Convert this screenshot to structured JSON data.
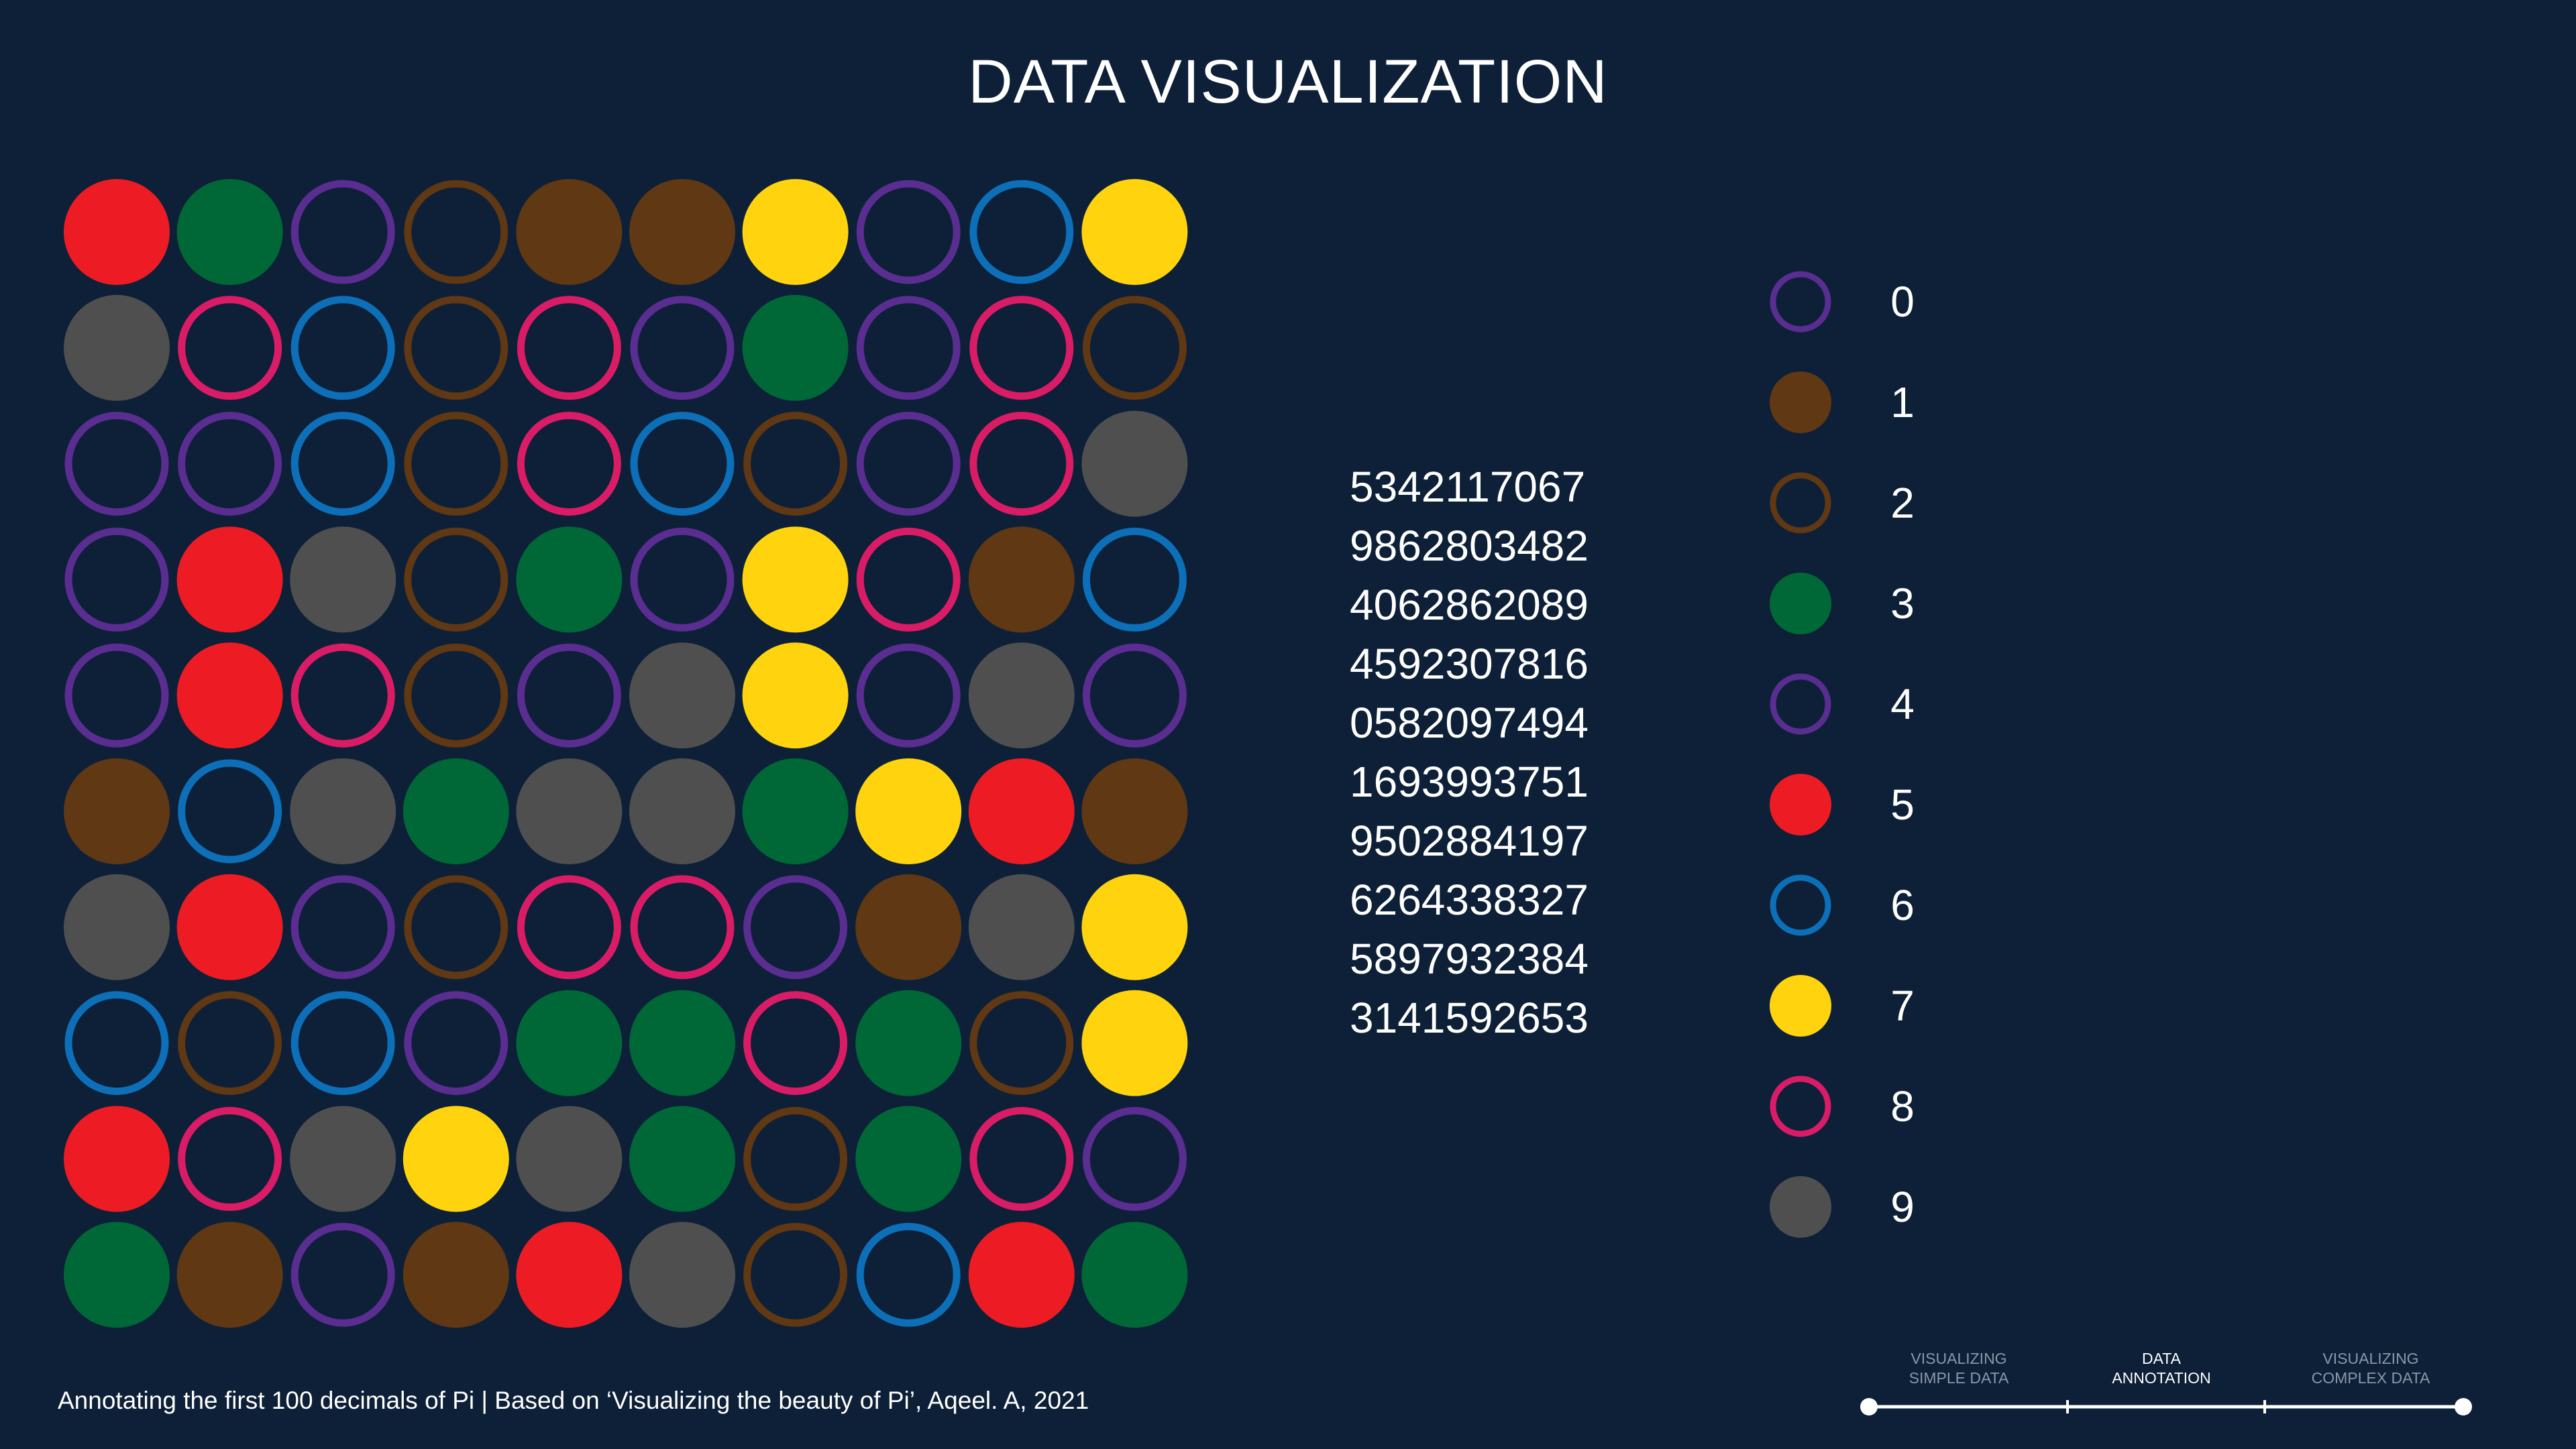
{
  "title": "DATA VISUALIZATION",
  "caption": "Annotating the first 100 decimals of Pi | Based on ‘Visualizing the beauty of Pi’, Aqeel. A, 2021",
  "digit_rows": [
    "5342117067",
    "9862803482",
    "4062862089",
    "4592307816",
    "0582097494",
    "1693993751",
    "9502884197",
    "6264338327",
    "5897932384",
    "3141592653"
  ],
  "legend": [
    {
      "digit": "0",
      "color": "#5a2d91",
      "style": "ring"
    },
    {
      "digit": "1",
      "color": "#603813",
      "style": "filled"
    },
    {
      "digit": "2",
      "color": "#603813",
      "style": "ring"
    },
    {
      "digit": "3",
      "color": "#006837",
      "style": "filled"
    },
    {
      "digit": "4",
      "color": "#5a2d91",
      "style": "ring"
    },
    {
      "digit": "5",
      "color": "#ed1c24",
      "style": "filled"
    },
    {
      "digit": "6",
      "color": "#0d6fb8",
      "style": "ring"
    },
    {
      "digit": "7",
      "color": "#ffd40f",
      "style": "filled"
    },
    {
      "digit": "8",
      "color": "#da1c67",
      "style": "ring"
    },
    {
      "digit": "9",
      "color": "#4f4f4f",
      "style": "filled"
    }
  ],
  "timeline": {
    "steps": [
      {
        "line1": "VISUALIZING",
        "line2": "SIMPLE DATA",
        "active": false
      },
      {
        "line1": "DATA",
        "line2": "ANNOTATION",
        "active": true
      },
      {
        "line1": "VISUALIZING",
        "line2": "COMPLEX DATA",
        "active": false
      }
    ]
  }
}
